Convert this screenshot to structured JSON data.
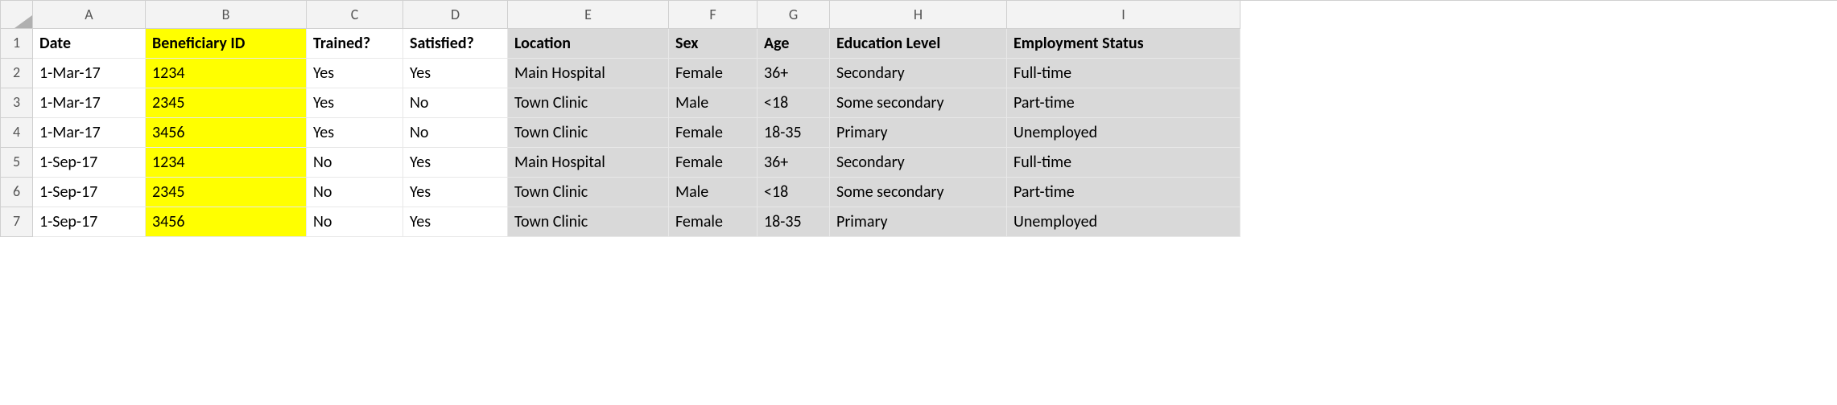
{
  "colors": {
    "highlight_yellow": "#ffff00",
    "highlight_grey": "#d9d9d9",
    "header_bg": "#f3f3f3",
    "grid_line": "#e8e8e8",
    "text": "#000000"
  },
  "columnLetters": [
    "A",
    "B",
    "C",
    "D",
    "E",
    "F",
    "G",
    "H",
    "I"
  ],
  "rowNumbers": [
    "1",
    "2",
    "3",
    "4",
    "5",
    "6",
    "7"
  ],
  "headers": {
    "A": "Date",
    "B": "Beneficiary ID",
    "C": "Trained?",
    "D": "Satisfied?",
    "E": "Location",
    "F": "Sex",
    "G": "Age",
    "H": "Education Level",
    "I": "Employment Status"
  },
  "rows": [
    {
      "A": "1-Mar-17",
      "B": "1234",
      "C": "Yes",
      "D": "Yes",
      "E": "Main Hospital",
      "F": "Female",
      "G": "36+",
      "H": "Secondary",
      "I": "Full-time"
    },
    {
      "A": "1-Mar-17",
      "B": "2345",
      "C": "Yes",
      "D": "No",
      "E": "Town Clinic",
      "F": "Male",
      "G": "<18",
      "H": "Some secondary",
      "I": "Part-time"
    },
    {
      "A": "1-Mar-17",
      "B": "3456",
      "C": "Yes",
      "D": "No",
      "E": "Town Clinic",
      "F": "Female",
      "G": "18-35",
      "H": "Primary",
      "I": "Unemployed"
    },
    {
      "A": "1-Sep-17",
      "B": "1234",
      "C": "No",
      "D": "Yes",
      "E": "Main Hospital",
      "F": "Female",
      "G": "36+",
      "H": "Secondary",
      "I": "Full-time"
    },
    {
      "A": "1-Sep-17",
      "B": "2345",
      "C": "No",
      "D": "Yes",
      "E": "Town Clinic",
      "F": "Male",
      "G": "<18",
      "H": "Some secondary",
      "I": "Part-time"
    },
    {
      "A": "1-Sep-17",
      "B": "3456",
      "C": "No",
      "D": "Yes",
      "E": "Town Clinic",
      "F": "Female",
      "G": "18-35",
      "H": "Primary",
      "I": "Unemployed"
    }
  ],
  "highlight": {
    "yellowColumns": [
      "B"
    ],
    "greyColumns": [
      "E",
      "F",
      "G",
      "H",
      "I"
    ]
  }
}
